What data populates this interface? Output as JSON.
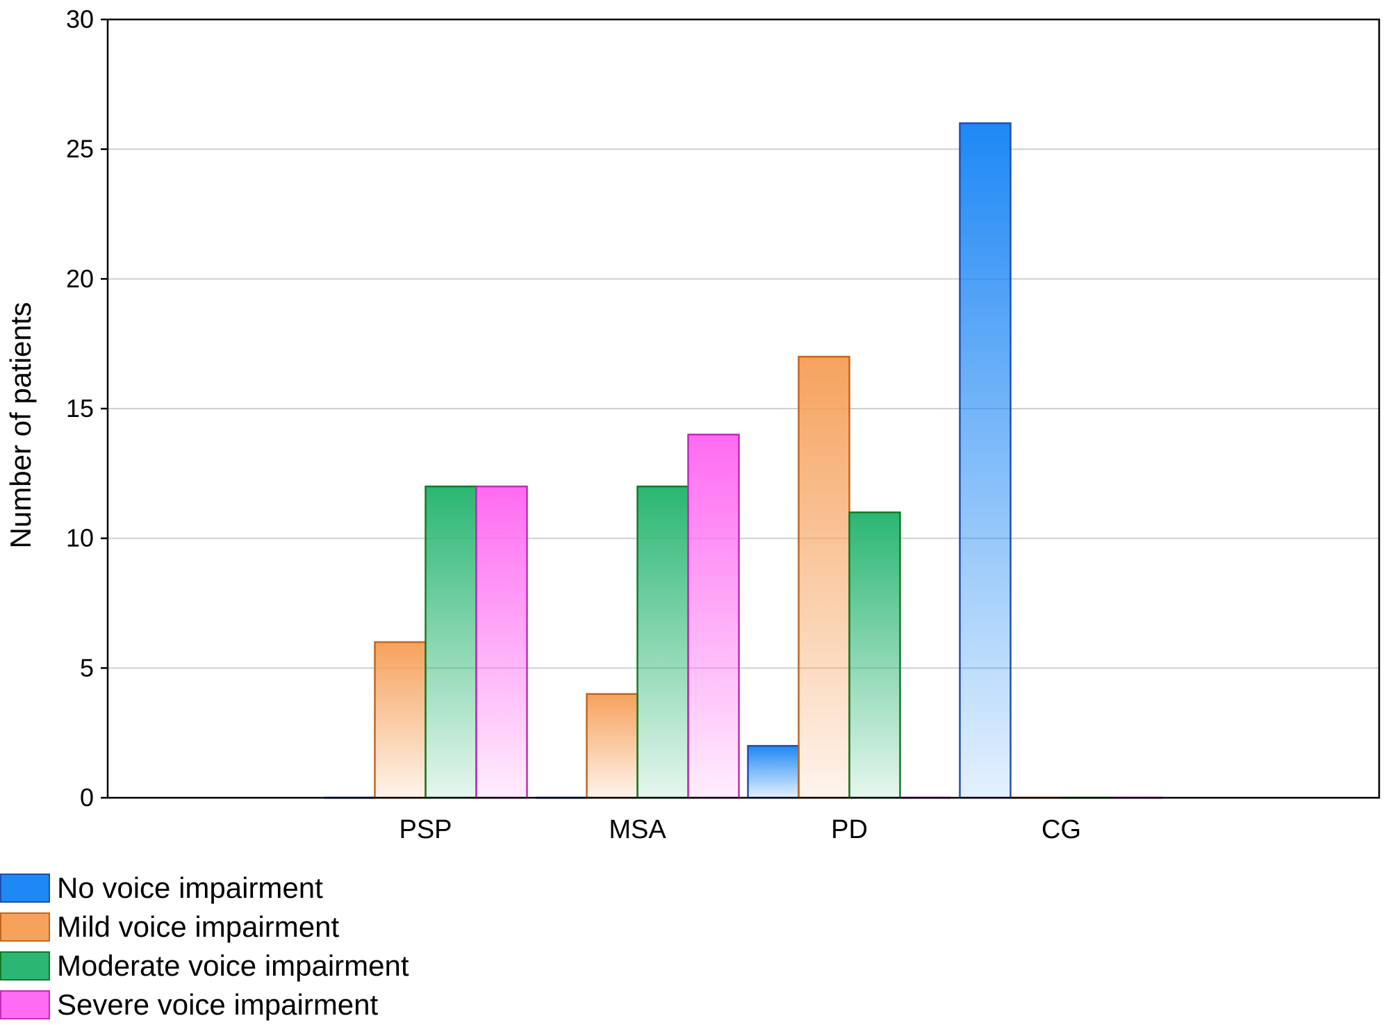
{
  "chart_data": {
    "type": "bar",
    "categories": [
      "PSP",
      "MSA",
      "PD",
      "CG"
    ],
    "series": [
      {
        "name": "No voice impairment",
        "values": [
          0,
          0,
          2,
          26
        ],
        "color": "#1e88f5",
        "edge": "#1f4fb0"
      },
      {
        "name": "Mild voice impairment",
        "values": [
          6,
          4,
          17,
          0
        ],
        "color": "#f6a25d",
        "edge": "#c4651e"
      },
      {
        "name": "Moderate voice impairment",
        "values": [
          12,
          12,
          11,
          0
        ],
        "color": "#2bb673",
        "edge": "#127a26"
      },
      {
        "name": "Severe voice impairment",
        "values": [
          12,
          14,
          0,
          0
        ],
        "color": "#ff6bf2",
        "edge": "#c22ab8"
      }
    ],
    "title": "",
    "xlabel": "",
    "ylabel": "Number of patients",
    "ylim": [
      0,
      30
    ],
    "yticks": [
      0,
      5,
      10,
      15,
      20,
      25,
      30
    ],
    "grid": true,
    "legend_position": "bottom-left"
  }
}
